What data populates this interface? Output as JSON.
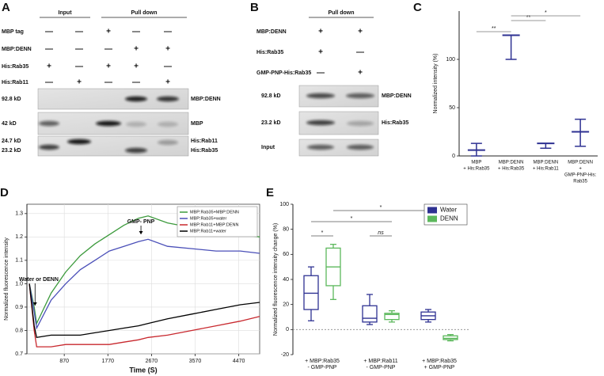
{
  "blots": {
    "a": {
      "label": "A",
      "groups": [
        "Input",
        "Pull down"
      ],
      "rows": [
        {
          "name": "MBP tag",
          "signs": [
            "—",
            "—",
            "+",
            "—",
            "—"
          ]
        },
        {
          "name": "MBP:DENN",
          "signs": [
            "—",
            "—",
            "—",
            "+",
            "+"
          ]
        },
        {
          "name": "His:Rab35",
          "signs": [
            "+",
            "—",
            "+",
            "+",
            "—"
          ]
        },
        {
          "name": "His:Rab11",
          "signs": [
            "—",
            "+",
            "—",
            "—",
            "+"
          ]
        }
      ],
      "left_labels": [
        "92.8 kD",
        "42 kD",
        "24.7 kD",
        "23.2 kD"
      ],
      "right_labels": [
        "MBP:DENN",
        "MBP",
        "His:Rab11",
        "His:Rab35"
      ]
    },
    "b": {
      "label": "B",
      "groups": [
        "Pull down"
      ],
      "rows": [
        {
          "name": "MBP:DENN",
          "signs": [
            "+",
            "+"
          ]
        },
        {
          "name": "His:Rab35",
          "signs": [
            "+",
            "—"
          ]
        },
        {
          "name": "GMP-PNP-His:Rab35",
          "signs": [
            "—",
            "+"
          ]
        }
      ],
      "left_labels": [
        "92.8 kD",
        "23.2 kD",
        "Input"
      ],
      "right_labels": [
        "MBP:DENN",
        "His:Rab35"
      ]
    }
  },
  "chart_data": [
    {
      "type": "range",
      "panel_label": "C",
      "y_label": "Normalized intensity (%)",
      "categories": [
        [
          "MBP",
          "+ His:Rab35"
        ],
        [
          "MBP:DENN",
          "+ His:Rab35"
        ],
        [
          "MBP:DENN",
          "+ His:Rab11"
        ],
        [
          "MBP:DENN",
          "+",
          "GMP-PNP-His:",
          "Rab35"
        ]
      ],
      "color": "#2e3192",
      "series": [
        {
          "low": [
            0,
            100,
            8,
            10
          ],
          "mid": [
            6,
            125,
            13,
            25
          ],
          "high": [
            13,
            125,
            13,
            38
          ]
        }
      ],
      "ylim": [
        0,
        150
      ],
      "yticks": [
        0,
        50,
        100
      ],
      "brackets": [
        {
          "text": "**",
          "from": 0,
          "to": 1
        },
        {
          "text": "**",
          "from": 1,
          "to": 2
        },
        {
          "text": "*",
          "from": 1,
          "to": 3
        }
      ]
    },
    {
      "type": "line",
      "panel_label": "D",
      "x_label": "Time (S)",
      "y_label": "Normalized fluorescence intensity",
      "x": [
        150,
        250,
        300,
        600,
        900,
        1200,
        1500,
        1800,
        2100,
        2400,
        2600,
        3000,
        3500,
        4000,
        4500,
        4900
      ],
      "series": [
        {
          "name": "MBP:Rab35+MBP:DENN",
          "color": "#3c9a3c",
          "values": [
            1.0,
            0.9,
            0.83,
            0.96,
            1.05,
            1.12,
            1.17,
            1.21,
            1.25,
            1.28,
            1.29,
            1.26,
            1.24,
            1.22,
            1.21,
            1.2
          ]
        },
        {
          "name": "MBP:Rab35+water",
          "color": "#4a4fb8",
          "values": [
            1.0,
            0.88,
            0.81,
            0.93,
            1.0,
            1.06,
            1.1,
            1.14,
            1.16,
            1.18,
            1.19,
            1.16,
            1.15,
            1.14,
            1.14,
            1.13
          ]
        },
        {
          "name": "MBP:Rab11+MBP:DENN",
          "color": "#c8282e",
          "values": [
            1.0,
            0.8,
            0.73,
            0.73,
            0.74,
            0.74,
            0.74,
            0.74,
            0.75,
            0.76,
            0.77,
            0.78,
            0.8,
            0.82,
            0.84,
            0.86
          ]
        },
        {
          "name": "MBP:Rab11+water",
          "color": "#000000",
          "values": [
            1.0,
            0.82,
            0.77,
            0.78,
            0.78,
            0.78,
            0.79,
            0.8,
            0.81,
            0.82,
            0.83,
            0.85,
            0.87,
            0.89,
            0.91,
            0.92
          ]
        }
      ],
      "xlim": [
        100,
        4900
      ],
      "xticks": [
        870,
        1770,
        2670,
        3570,
        4470
      ],
      "ylim": [
        0.7,
        1.34
      ],
      "yticks": [
        0.7,
        0.8,
        0.9,
        {
          "value": 1,
          "label": "1.0"
        },
        1.1,
        1.2,
        1.3
      ],
      "grid": true,
      "legend": "top-right",
      "annotations": [
        "GMP- PNP",
        "Water or DENN"
      ]
    },
    {
      "type": "box",
      "panel_label": "E",
      "y_label": "Normalized fluorescence intensity change (%)",
      "categories": [
        [
          "+ MBP:Rab35",
          "- GMP-PNP"
        ],
        [
          "+ MBP:Rab11",
          "- GMP-PNP"
        ],
        [
          "+ MBP:Rab35",
          "+ GMP-PNP"
        ]
      ],
      "series": [
        {
          "name": "Water",
          "color": "#2e3192",
          "min": [
            7,
            4,
            6
          ],
          "q1": [
            16,
            6,
            8
          ],
          "median": [
            29,
            9,
            11
          ],
          "q3": [
            43,
            19,
            14
          ],
          "max": [
            50,
            28,
            16
          ]
        },
        {
          "name": "DENN",
          "color": "#5cb85c",
          "min": [
            24,
            6,
            -9
          ],
          "q1": [
            35,
            8,
            -8
          ],
          "median": [
            50,
            12,
            -7
          ],
          "q3": [
            65,
            13,
            -5
          ],
          "max": [
            68,
            15,
            -4
          ]
        }
      ],
      "ylim": [
        -20,
        100
      ],
      "yticks": [
        -20,
        0,
        20,
        40,
        60,
        80,
        100
      ],
      "hline": 0,
      "legend": "top-right",
      "brackets": [
        {
          "text": "*",
          "from": [
            0,
            1
          ],
          "to": [
            2,
            0
          ]
        },
        {
          "text": "*",
          "from": [
            0,
            0
          ],
          "to": [
            1,
            1
          ]
        },
        {
          "text": "*",
          "from": [
            0,
            0
          ],
          "to": [
            0,
            1
          ]
        },
        {
          "text": "ns",
          "from": [
            1,
            0
          ],
          "to": [
            1,
            1
          ]
        }
      ]
    }
  ]
}
